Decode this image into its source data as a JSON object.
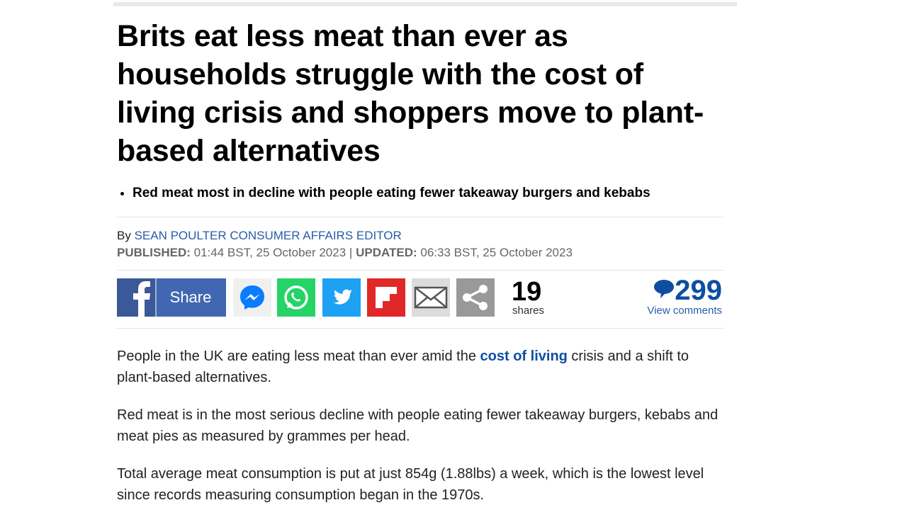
{
  "article": {
    "headline": "Brits eat less meat than ever as households struggle with the cost of living crisis and shoppers move to plant-based alternatives",
    "bullets": [
      "Red meat most in decline with people eating fewer takeaway burgers and kebabs"
    ],
    "byline": {
      "prefix": "By",
      "author": "SEAN POULTER CONSUMER AFFAIRS EDITOR"
    },
    "dates": {
      "published_label": "PUBLISHED:",
      "published": "01:44 BST, 25 October 2023",
      "separator": "|",
      "updated_label": "UPDATED:",
      "updated": "06:33 BST, 25 October 2023"
    },
    "share_bar": {
      "share_button": "Share",
      "share_count": "19",
      "share_count_label": "shares",
      "comment_count": "299",
      "comments_link": "View comments"
    },
    "paragraphs": [
      {
        "before": "People in the UK are eating less meat than ever amid the ",
        "link": "cost of living",
        "after": " crisis and a shift to plant-based alternatives."
      },
      {
        "text": "Red meat is in the most serious decline with people eating fewer takeaway burgers, kebabs and meat pies as measured by grammes per head."
      },
      {
        "text": "Total average meat consumption is put at just 854g (1.88lbs) a week, which is the lowest level since records measuring consumption began in the 1970s."
      }
    ]
  }
}
